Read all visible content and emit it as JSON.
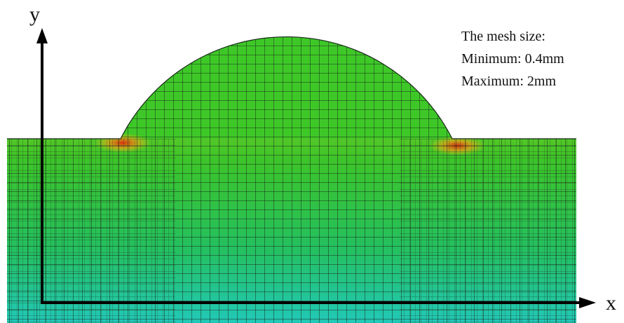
{
  "axes": {
    "x_label": "x",
    "y_label": "y"
  },
  "annotation": {
    "lines": [
      "The mesh size:",
      "Minimum: 0.4mm",
      "Maximum: 2mm"
    ]
  }
}
